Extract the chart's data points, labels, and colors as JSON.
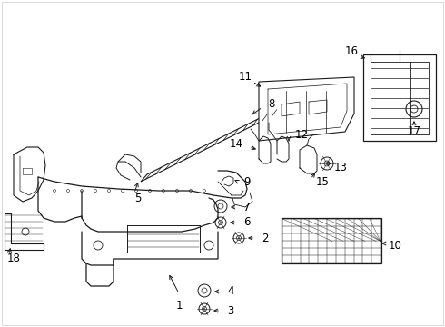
{
  "background_color": "#ffffff",
  "line_color": "#1a1a1a",
  "label_color": "#000000",
  "font_size": 8.5,
  "figsize": [
    4.9,
    3.6
  ],
  "dpi": 100,
  "xlim": [
    0,
    490
  ],
  "ylim": [
    0,
    360
  ]
}
